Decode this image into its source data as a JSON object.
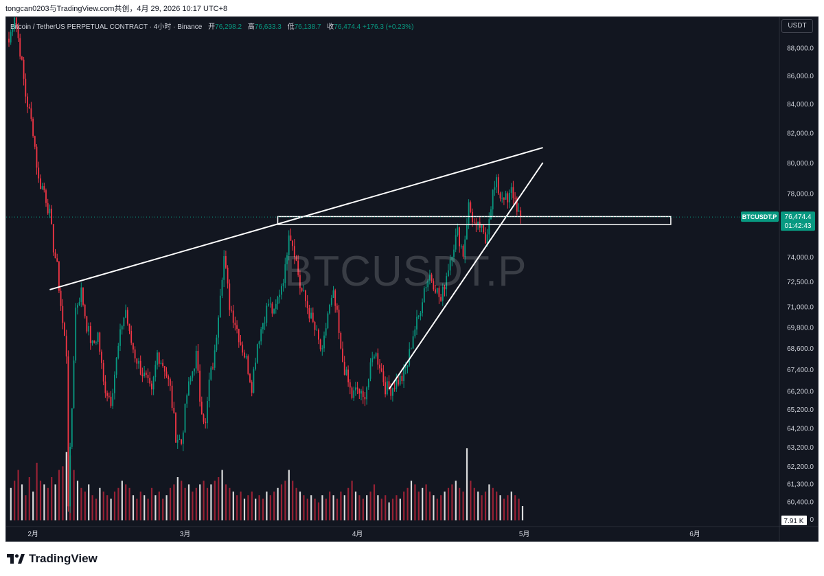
{
  "header": {
    "share_text": "tongcan0203与TradingView.com共创，4月 29, 2026 10:17 UTC+8"
  },
  "legend": {
    "title": "Bitcoin / TetherUS PERPETUAL CONTRACT · 4小时 · Binance",
    "open_label": "开",
    "open": "76,298.2",
    "high_label": "高",
    "high": "76,633.3",
    "low_label": "低",
    "low": "76,138.7",
    "close_label": "收",
    "close": "76,474.4",
    "change": "+176.3 (+0.23%)"
  },
  "currency_button": "USDT",
  "watermark": "BTCUSDT.P",
  "price_tag": {
    "symbol": "BTCUSDT.P",
    "price": "76,474.4",
    "countdown": "01:42:43"
  },
  "volume_tag": "7.91 K",
  "footer": {
    "brand": "TradingView"
  },
  "colors": {
    "up": "#089981",
    "down": "#f23645",
    "background": "#121620",
    "drawing": "#ffffff",
    "volume_up": "#ffffff",
    "volume_down": "#b2253a"
  },
  "chart_data": {
    "type": "candlestick",
    "symbol": "BTCUSDT.P",
    "interval": "4h",
    "price_axis": {
      "ticks": [
        {
          "label": "88,000.0",
          "value": 88000
        },
        {
          "label": "86,000.0",
          "value": 86000
        },
        {
          "label": "84,000.0",
          "value": 84000
        },
        {
          "label": "82,000.0",
          "value": 82000
        },
        {
          "label": "80,000.0",
          "value": 80000
        },
        {
          "label": "78,000.0",
          "value": 78000
        },
        {
          "label": "74,000.0",
          "value": 74000
        },
        {
          "label": "72,500.0",
          "value": 72500
        },
        {
          "label": "71,000.0",
          "value": 71000
        },
        {
          "label": "69,800.0",
          "value": 69800
        },
        {
          "label": "68,600.0",
          "value": 68600
        },
        {
          "label": "67,400.0",
          "value": 67400
        },
        {
          "label": "66,200.0",
          "value": 66200
        },
        {
          "label": "65,200.0",
          "value": 65200
        },
        {
          "label": "64,200.0",
          "value": 64200
        },
        {
          "label": "63,200.0",
          "value": 63200
        },
        {
          "label": "62,200.0",
          "value": 62200
        },
        {
          "label": "61,300.0",
          "value": 61300
        },
        {
          "label": "60,400.0",
          "value": 60400
        }
      ],
      "scale": "log",
      "volume_zero_label": "0"
    },
    "time_axis": {
      "labels": [
        "2月",
        "3月",
        "4月",
        "5月",
        "6月"
      ]
    },
    "path": [
      {
        "x": 0,
        "y": 88400
      },
      {
        "x": 3,
        "y": 90500
      },
      {
        "x": 6,
        "y": 87800
      },
      {
        "x": 9,
        "y": 84600
      },
      {
        "x": 13,
        "y": 82200
      },
      {
        "x": 16,
        "y": 78800
      },
      {
        "x": 19,
        "y": 78200
      },
      {
        "x": 22,
        "y": 76600
      },
      {
        "x": 24,
        "y": 74600
      },
      {
        "x": 26,
        "y": 73300
      },
      {
        "x": 29,
        "y": 70000
      },
      {
        "x": 31,
        "y": 68300
      },
      {
        "x": 32,
        "y": 60400
      },
      {
        "x": 34,
        "y": 65300
      },
      {
        "x": 36,
        "y": 70900
      },
      {
        "x": 39,
        "y": 71900
      },
      {
        "x": 42,
        "y": 69900
      },
      {
        "x": 45,
        "y": 68700
      },
      {
        "x": 48,
        "y": 69400
      },
      {
        "x": 51,
        "y": 66600
      },
      {
        "x": 55,
        "y": 65700
      },
      {
        "x": 58,
        "y": 67900
      },
      {
        "x": 61,
        "y": 70000
      },
      {
        "x": 63,
        "y": 70800
      },
      {
        "x": 65,
        "y": 69300
      },
      {
        "x": 68,
        "y": 68200
      },
      {
        "x": 71,
        "y": 67400
      },
      {
        "x": 74,
        "y": 66800
      },
      {
        "x": 77,
        "y": 66000
      },
      {
        "x": 80,
        "y": 68300
      },
      {
        "x": 84,
        "y": 67500
      },
      {
        "x": 87,
        "y": 66300
      },
      {
        "x": 90,
        "y": 63800
      },
      {
        "x": 93,
        "y": 63400
      },
      {
        "x": 96,
        "y": 66000
      },
      {
        "x": 99,
        "y": 67300
      },
      {
        "x": 101,
        "y": 68200
      },
      {
        "x": 103,
        "y": 65800
      },
      {
        "x": 106,
        "y": 64300
      },
      {
        "x": 108,
        "y": 66700
      },
      {
        "x": 111,
        "y": 68200
      },
      {
        "x": 114,
        "y": 72000
      },
      {
        "x": 116,
        "y": 74000
      },
      {
        "x": 119,
        "y": 71100
      },
      {
        "x": 122,
        "y": 70100
      },
      {
        "x": 125,
        "y": 68900
      },
      {
        "x": 128,
        "y": 67900
      },
      {
        "x": 131,
        "y": 66500
      },
      {
        "x": 134,
        "y": 68900
      },
      {
        "x": 137,
        "y": 70100
      },
      {
        "x": 140,
        "y": 71200
      },
      {
        "x": 143,
        "y": 70500
      },
      {
        "x": 146,
        "y": 71900
      },
      {
        "x": 149,
        "y": 73200
      },
      {
        "x": 151,
        "y": 75700
      },
      {
        "x": 154,
        "y": 74400
      },
      {
        "x": 157,
        "y": 72200
      },
      {
        "x": 160,
        "y": 71300
      },
      {
        "x": 163,
        "y": 70300
      },
      {
        "x": 166,
        "y": 69300
      },
      {
        "x": 169,
        "y": 68200
      },
      {
        "x": 172,
        "y": 70600
      },
      {
        "x": 175,
        "y": 71600
      },
      {
        "x": 177,
        "y": 70400
      },
      {
        "x": 179,
        "y": 68300
      },
      {
        "x": 182,
        "y": 67000
      },
      {
        "x": 185,
        "y": 65900
      },
      {
        "x": 188,
        "y": 66300
      },
      {
        "x": 191,
        "y": 65700
      },
      {
        "x": 194,
        "y": 66900
      },
      {
        "x": 197,
        "y": 68400
      },
      {
        "x": 200,
        "y": 67700
      },
      {
        "x": 203,
        "y": 66400
      },
      {
        "x": 206,
        "y": 66300
      },
      {
        "x": 209,
        "y": 66700
      },
      {
        "x": 212,
        "y": 66900
      },
      {
        "x": 215,
        "y": 67700
      },
      {
        "x": 218,
        "y": 69400
      },
      {
        "x": 221,
        "y": 70400
      },
      {
        "x": 224,
        "y": 72100
      },
      {
        "x": 227,
        "y": 72900
      },
      {
        "x": 230,
        "y": 72200
      },
      {
        "x": 233,
        "y": 71300
      },
      {
        "x": 236,
        "y": 72900
      },
      {
        "x": 239,
        "y": 74400
      },
      {
        "x": 242,
        "y": 75500
      },
      {
        "x": 245,
        "y": 74200
      },
      {
        "x": 248,
        "y": 77200
      },
      {
        "x": 250,
        "y": 76400
      },
      {
        "x": 252,
        "y": 75600
      },
      {
        "x": 254,
        "y": 75900
      },
      {
        "x": 257,
        "y": 74900
      },
      {
        "x": 259,
        "y": 76600
      },
      {
        "x": 261,
        "y": 78000
      },
      {
        "x": 263,
        "y": 78600
      },
      {
        "x": 265,
        "y": 77800
      },
      {
        "x": 267,
        "y": 77900
      },
      {
        "x": 269,
        "y": 77300
      },
      {
        "x": 271,
        "y": 78200
      },
      {
        "x": 273,
        "y": 77600
      },
      {
        "x": 275,
        "y": 76700
      },
      {
        "x": 276,
        "y": 76474
      }
    ],
    "volume": [
      {
        "x": 1,
        "v": 0.45
      },
      {
        "x": 3,
        "v": 0.55
      },
      {
        "x": 5,
        "v": 0.7
      },
      {
        "x": 7,
        "v": 0.5
      },
      {
        "x": 9,
        "v": 0.35
      },
      {
        "x": 11,
        "v": 0.6
      },
      {
        "x": 13,
        "v": 0.4
      },
      {
        "x": 15,
        "v": 0.8
      },
      {
        "x": 17,
        "v": 0.55
      },
      {
        "x": 19,
        "v": 0.5
      },
      {
        "x": 21,
        "v": 0.45
      },
      {
        "x": 23,
        "v": 0.6
      },
      {
        "x": 25,
        "v": 0.5
      },
      {
        "x": 27,
        "v": 0.7
      },
      {
        "x": 29,
        "v": 0.75
      },
      {
        "x": 31,
        "v": 0.95
      },
      {
        "x": 33,
        "v": 0.9
      },
      {
        "x": 35,
        "v": 0.7
      },
      {
        "x": 37,
        "v": 0.55
      },
      {
        "x": 39,
        "v": 0.45
      },
      {
        "x": 41,
        "v": 0.4
      },
      {
        "x": 43,
        "v": 0.5
      },
      {
        "x": 45,
        "v": 0.35
      },
      {
        "x": 47,
        "v": 0.3
      },
      {
        "x": 49,
        "v": 0.45
      },
      {
        "x": 51,
        "v": 0.4
      },
      {
        "x": 53,
        "v": 0.35
      },
      {
        "x": 55,
        "v": 0.3
      },
      {
        "x": 57,
        "v": 0.4
      },
      {
        "x": 59,
        "v": 0.45
      },
      {
        "x": 61,
        "v": 0.55
      },
      {
        "x": 63,
        "v": 0.5
      },
      {
        "x": 65,
        "v": 0.45
      },
      {
        "x": 67,
        "v": 0.35
      },
      {
        "x": 69,
        "v": 0.3
      },
      {
        "x": 71,
        "v": 0.4
      },
      {
        "x": 73,
        "v": 0.35
      },
      {
        "x": 75,
        "v": 0.3
      },
      {
        "x": 77,
        "v": 0.45
      },
      {
        "x": 79,
        "v": 0.35
      },
      {
        "x": 81,
        "v": 0.4
      },
      {
        "x": 83,
        "v": 0.3
      },
      {
        "x": 85,
        "v": 0.35
      },
      {
        "x": 87,
        "v": 0.45
      },
      {
        "x": 89,
        "v": 0.5
      },
      {
        "x": 91,
        "v": 0.6
      },
      {
        "x": 93,
        "v": 0.55
      },
      {
        "x": 95,
        "v": 0.45
      },
      {
        "x": 97,
        "v": 0.5
      },
      {
        "x": 99,
        "v": 0.4
      },
      {
        "x": 101,
        "v": 0.45
      },
      {
        "x": 103,
        "v": 0.5
      },
      {
        "x": 105,
        "v": 0.55
      },
      {
        "x": 107,
        "v": 0.45
      },
      {
        "x": 109,
        "v": 0.5
      },
      {
        "x": 111,
        "v": 0.55
      },
      {
        "x": 113,
        "v": 0.6
      },
      {
        "x": 115,
        "v": 0.7
      },
      {
        "x": 117,
        "v": 0.5
      },
      {
        "x": 119,
        "v": 0.45
      },
      {
        "x": 121,
        "v": 0.4
      },
      {
        "x": 123,
        "v": 0.35
      },
      {
        "x": 125,
        "v": 0.4
      },
      {
        "x": 127,
        "v": 0.3
      },
      {
        "x": 129,
        "v": 0.35
      },
      {
        "x": 131,
        "v": 0.4
      },
      {
        "x": 133,
        "v": 0.3
      },
      {
        "x": 135,
        "v": 0.35
      },
      {
        "x": 137,
        "v": 0.3
      },
      {
        "x": 139,
        "v": 0.4
      },
      {
        "x": 141,
        "v": 0.35
      },
      {
        "x": 143,
        "v": 0.4
      },
      {
        "x": 145,
        "v": 0.45
      },
      {
        "x": 147,
        "v": 0.5
      },
      {
        "x": 149,
        "v": 0.55
      },
      {
        "x": 151,
        "v": 0.7
      },
      {
        "x": 153,
        "v": 0.55
      },
      {
        "x": 155,
        "v": 0.45
      },
      {
        "x": 157,
        "v": 0.4
      },
      {
        "x": 159,
        "v": 0.35
      },
      {
        "x": 161,
        "v": 0.3
      },
      {
        "x": 163,
        "v": 0.35
      },
      {
        "x": 165,
        "v": 0.3
      },
      {
        "x": 167,
        "v": 0.25
      },
      {
        "x": 169,
        "v": 0.35
      },
      {
        "x": 171,
        "v": 0.3
      },
      {
        "x": 173,
        "v": 0.4
      },
      {
        "x": 175,
        "v": 0.35
      },
      {
        "x": 177,
        "v": 0.3
      },
      {
        "x": 179,
        "v": 0.4
      },
      {
        "x": 181,
        "v": 0.35
      },
      {
        "x": 183,
        "v": 0.45
      },
      {
        "x": 185,
        "v": 0.55
      },
      {
        "x": 187,
        "v": 0.4
      },
      {
        "x": 189,
        "v": 0.35
      },
      {
        "x": 191,
        "v": 0.3
      },
      {
        "x": 193,
        "v": 0.35
      },
      {
        "x": 195,
        "v": 0.4
      },
      {
        "x": 197,
        "v": 0.5
      },
      {
        "x": 199,
        "v": 0.35
      },
      {
        "x": 201,
        "v": 0.3
      },
      {
        "x": 203,
        "v": 0.35
      },
      {
        "x": 205,
        "v": 0.25
      },
      {
        "x": 207,
        "v": 0.3
      },
      {
        "x": 209,
        "v": 0.35
      },
      {
        "x": 211,
        "v": 0.3
      },
      {
        "x": 213,
        "v": 0.4
      },
      {
        "x": 215,
        "v": 0.45
      },
      {
        "x": 217,
        "v": 0.55
      },
      {
        "x": 219,
        "v": 0.5
      },
      {
        "x": 221,
        "v": 0.4
      },
      {
        "x": 223,
        "v": 0.45
      },
      {
        "x": 225,
        "v": 0.5
      },
      {
        "x": 227,
        "v": 0.4
      },
      {
        "x": 229,
        "v": 0.35
      },
      {
        "x": 231,
        "v": 0.3
      },
      {
        "x": 233,
        "v": 0.35
      },
      {
        "x": 235,
        "v": 0.4
      },
      {
        "x": 237,
        "v": 0.45
      },
      {
        "x": 239,
        "v": 0.5
      },
      {
        "x": 241,
        "v": 0.55
      },
      {
        "x": 243,
        "v": 0.45
      },
      {
        "x": 245,
        "v": 0.4
      },
      {
        "x": 247,
        "v": 1.0
      },
      {
        "x": 249,
        "v": 0.55
      },
      {
        "x": 251,
        "v": 0.45
      },
      {
        "x": 253,
        "v": 0.4
      },
      {
        "x": 255,
        "v": 0.35
      },
      {
        "x": 257,
        "v": 0.4
      },
      {
        "x": 259,
        "v": 0.5
      },
      {
        "x": 261,
        "v": 0.45
      },
      {
        "x": 263,
        "v": 0.4
      },
      {
        "x": 265,
        "v": 0.35
      },
      {
        "x": 267,
        "v": 0.3
      },
      {
        "x": 269,
        "v": 0.35
      },
      {
        "x": 271,
        "v": 0.4
      },
      {
        "x": 273,
        "v": 0.35
      },
      {
        "x": 275,
        "v": 0.3
      },
      {
        "x": 277,
        "v": 0.2
      }
    ],
    "drawings": [
      {
        "type": "trendline",
        "from": {
          "x": 22,
          "y": 72000
        },
        "to": {
          "x": 288,
          "y": 81000
        }
      },
      {
        "type": "trendline",
        "from": {
          "x": 205,
          "y": 66300
        },
        "to": {
          "x": 288,
          "y": 80000
        }
      },
      {
        "type": "rectangle",
        "from": {
          "x": 145,
          "y": 76500
        },
        "to": {
          "x": 357,
          "y": 76000
        }
      }
    ]
  }
}
